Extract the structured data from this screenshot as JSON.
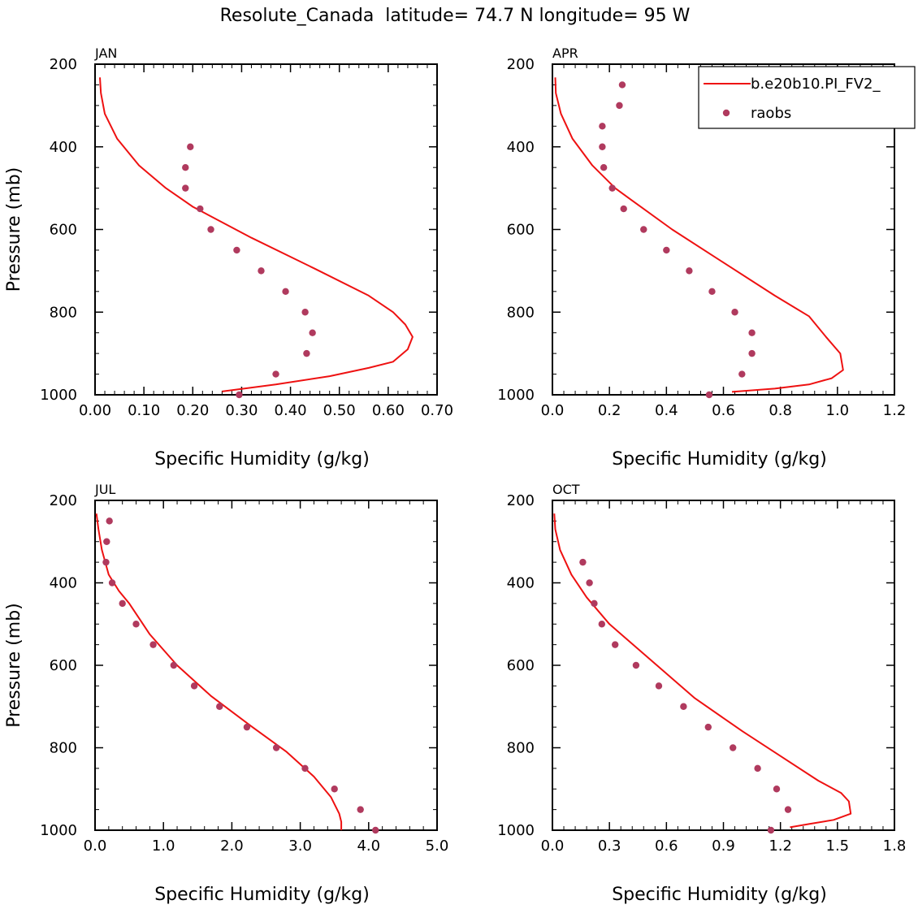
{
  "title": "Resolute_Canada  latitude= 74.7 N longitude= 95 W",
  "colors": {
    "model": "#ee1111",
    "obs": "#b03a5e"
  },
  "legend": {
    "model_label": "b.e20b10.PI_FV2_",
    "obs_label": "raobs"
  },
  "chart_data": [
    {
      "type": "line",
      "label": "JAN",
      "xlabel": "Specific Humidity (g/kg)",
      "ylabel": "Pressure (mb)",
      "xlim": [
        0,
        0.7
      ],
      "ylim": [
        200,
        1000
      ],
      "y_inverted": true,
      "xticks": [
        "0.00",
        "0.10",
        "0.20",
        "0.30",
        "0.40",
        "0.50",
        "0.60",
        "0.70"
      ],
      "yticks": [
        "200",
        "400",
        "600",
        "800",
        "1000"
      ],
      "series": [
        {
          "name": "b.e20b10.PI_FV2_",
          "kind": "line",
          "x": [
            0.01,
            0.012,
            0.02,
            0.045,
            0.09,
            0.145,
            0.2,
            0.32,
            0.45,
            0.56,
            0.61,
            0.635,
            0.65,
            0.64,
            0.61,
            0.56,
            0.48,
            0.37,
            0.26
          ],
          "y": [
            232,
            270,
            320,
            380,
            445,
            500,
            545,
            620,
            695,
            760,
            800,
            830,
            860,
            890,
            920,
            935,
            955,
            975,
            992
          ]
        },
        {
          "name": "raobs",
          "kind": "points",
          "x": [
            0.195,
            0.185,
            0.185,
            0.215,
            0.237,
            0.29,
            0.34,
            0.39,
            0.43,
            0.445,
            0.433,
            0.37,
            0.295
          ],
          "y": [
            400,
            450,
            500,
            550,
            600,
            650,
            700,
            750,
            800,
            850,
            900,
            950,
            1000
          ]
        }
      ]
    },
    {
      "type": "line",
      "label": "APR",
      "xlabel": "Specific Humidity (g/kg)",
      "ylabel": "",
      "xlim": [
        0,
        1.2
      ],
      "ylim": [
        200,
        1000
      ],
      "y_inverted": true,
      "xticks": [
        "0.0",
        "0.2",
        "0.4",
        "0.6",
        "0.8",
        "1.0",
        "1.2"
      ],
      "yticks": [
        "200",
        "400",
        "600",
        "800",
        "1000"
      ],
      "series": [
        {
          "name": "b.e20b10.PI_FV2_",
          "kind": "line",
          "x": [
            0.01,
            0.012,
            0.03,
            0.07,
            0.14,
            0.22,
            0.28,
            0.42,
            0.6,
            0.78,
            0.9,
            0.96,
            1.01,
            1.02,
            0.98,
            0.9,
            0.78,
            0.63
          ],
          "y": [
            232,
            270,
            320,
            380,
            445,
            500,
            530,
            600,
            680,
            760,
            810,
            860,
            900,
            940,
            960,
            975,
            985,
            993
          ]
        },
        {
          "name": "raobs",
          "kind": "points",
          "x": [
            0.245,
            0.235,
            0.175,
            0.175,
            0.18,
            0.21,
            0.25,
            0.32,
            0.4,
            0.48,
            0.56,
            0.64,
            0.7,
            0.7,
            0.665,
            0.55
          ],
          "y": [
            250,
            300,
            350,
            400,
            450,
            500,
            550,
            600,
            650,
            700,
            750,
            800,
            850,
            900,
            950,
            1000
          ]
        }
      ]
    },
    {
      "type": "line",
      "label": "JUL",
      "xlabel": "Specific Humidity (g/kg)",
      "ylabel": "Pressure (mb)",
      "xlim": [
        0,
        5.0
      ],
      "ylim": [
        200,
        1000
      ],
      "y_inverted": true,
      "xticks": [
        "0.0",
        "1.0",
        "2.0",
        "3.0",
        "4.0",
        "5.0"
      ],
      "yticks": [
        "200",
        "400",
        "600",
        "800",
        "1000"
      ],
      "series": [
        {
          "name": "b.e20b10.PI_FV2_",
          "kind": "line",
          "x": [
            0.02,
            0.05,
            0.1,
            0.2,
            0.35,
            0.5,
            0.8,
            1.2,
            1.7,
            2.3,
            2.8,
            3.2,
            3.45,
            3.57,
            3.6,
            3.6
          ],
          "y": [
            232,
            270,
            320,
            380,
            420,
            450,
            525,
            600,
            675,
            750,
            810,
            870,
            920,
            960,
            980,
            1000
          ]
        },
        {
          "name": "raobs",
          "kind": "points",
          "x": [
            0.21,
            0.17,
            0.16,
            0.25,
            0.4,
            0.6,
            0.85,
            1.15,
            1.45,
            1.82,
            2.22,
            2.65,
            3.07,
            3.5,
            3.88,
            4.1
          ],
          "y": [
            250,
            300,
            350,
            400,
            450,
            500,
            550,
            600,
            650,
            700,
            750,
            800,
            850,
            900,
            950,
            1000
          ]
        }
      ]
    },
    {
      "type": "line",
      "label": "OCT",
      "xlabel": "Specific Humidity (g/kg)",
      "ylabel": "",
      "xlim": [
        0,
        1.8
      ],
      "ylim": [
        200,
        1000
      ],
      "y_inverted": true,
      "xticks": [
        "0.0",
        "0.3",
        "0.6",
        "0.9",
        "1.2",
        "1.5",
        "1.8"
      ],
      "yticks": [
        "200",
        "400",
        "600",
        "800",
        "1000"
      ],
      "series": [
        {
          "name": "b.e20b10.PI_FV2_",
          "kind": "line",
          "x": [
            0.01,
            0.015,
            0.04,
            0.1,
            0.18,
            0.3,
            0.55,
            0.75,
            1.0,
            1.2,
            1.4,
            1.52,
            1.56,
            1.57,
            1.48,
            1.35,
            1.25
          ],
          "y": [
            232,
            270,
            320,
            380,
            435,
            500,
            600,
            680,
            760,
            820,
            880,
            910,
            930,
            960,
            975,
            985,
            993
          ]
        },
        {
          "name": "raobs",
          "kind": "points",
          "x": [
            0.16,
            0.195,
            0.22,
            0.26,
            0.33,
            0.44,
            0.56,
            0.69,
            0.82,
            0.95,
            1.08,
            1.18,
            1.24,
            1.15
          ],
          "y": [
            350,
            400,
            450,
            500,
            550,
            600,
            650,
            700,
            750,
            800,
            850,
            900,
            950,
            1000
          ]
        }
      ]
    }
  ]
}
